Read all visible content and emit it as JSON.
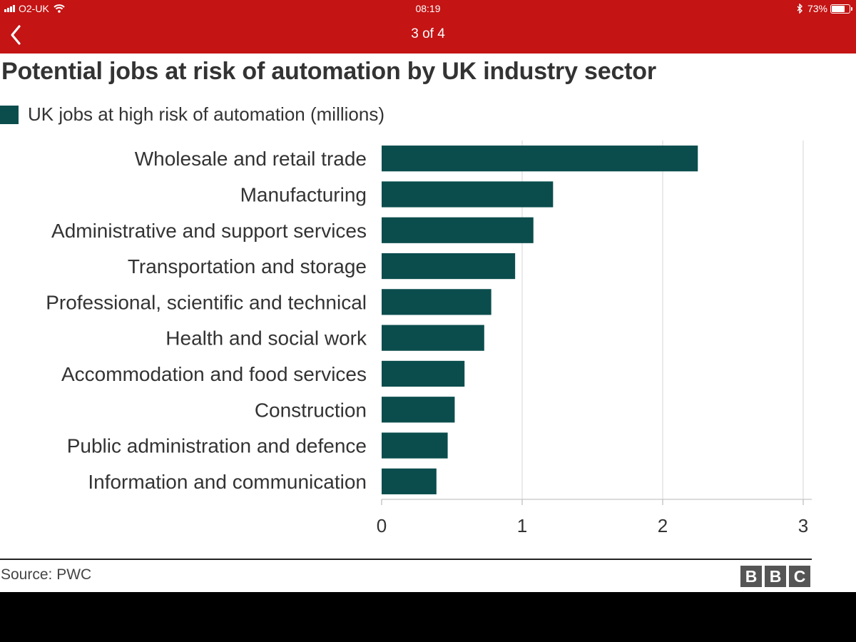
{
  "status_bar": {
    "carrier": "O2-UK",
    "time": "08:19",
    "battery": "73%",
    "battery_level": 0.73
  },
  "nav": {
    "page_indicator": "3 of 4"
  },
  "colors": {
    "header_bg": "#c41414",
    "bar": "#0b4d4d"
  },
  "icons": [
    "signal-icon",
    "wifi-icon",
    "bluetooth-icon",
    "battery-icon",
    "back-chevron-icon"
  ],
  "chart_data": {
    "type": "bar",
    "orientation": "horizontal",
    "title": "Potential jobs at risk of automation by UK industry sector",
    "categories": [
      "Wholesale and retail trade",
      "Manufacturing",
      "Administrative and support services",
      "Transportation and storage",
      "Professional, scientific and technical",
      "Health and social work",
      "Accommodation and food services",
      "Construction",
      "Public administration and defence",
      "Information and communication"
    ],
    "series": [
      {
        "name": "UK jobs at high risk of automation (millions)",
        "values": [
          2.25,
          1.22,
          1.08,
          0.95,
          0.78,
          0.73,
          0.59,
          0.52,
          0.47,
          0.39
        ]
      }
    ],
    "xlim": [
      0,
      3
    ],
    "xticks": [
      "0",
      "1",
      "2",
      "3"
    ],
    "grid": true,
    "legend": "top-left"
  },
  "footer": {
    "source": "Source: PWC",
    "logo": "BBC"
  }
}
